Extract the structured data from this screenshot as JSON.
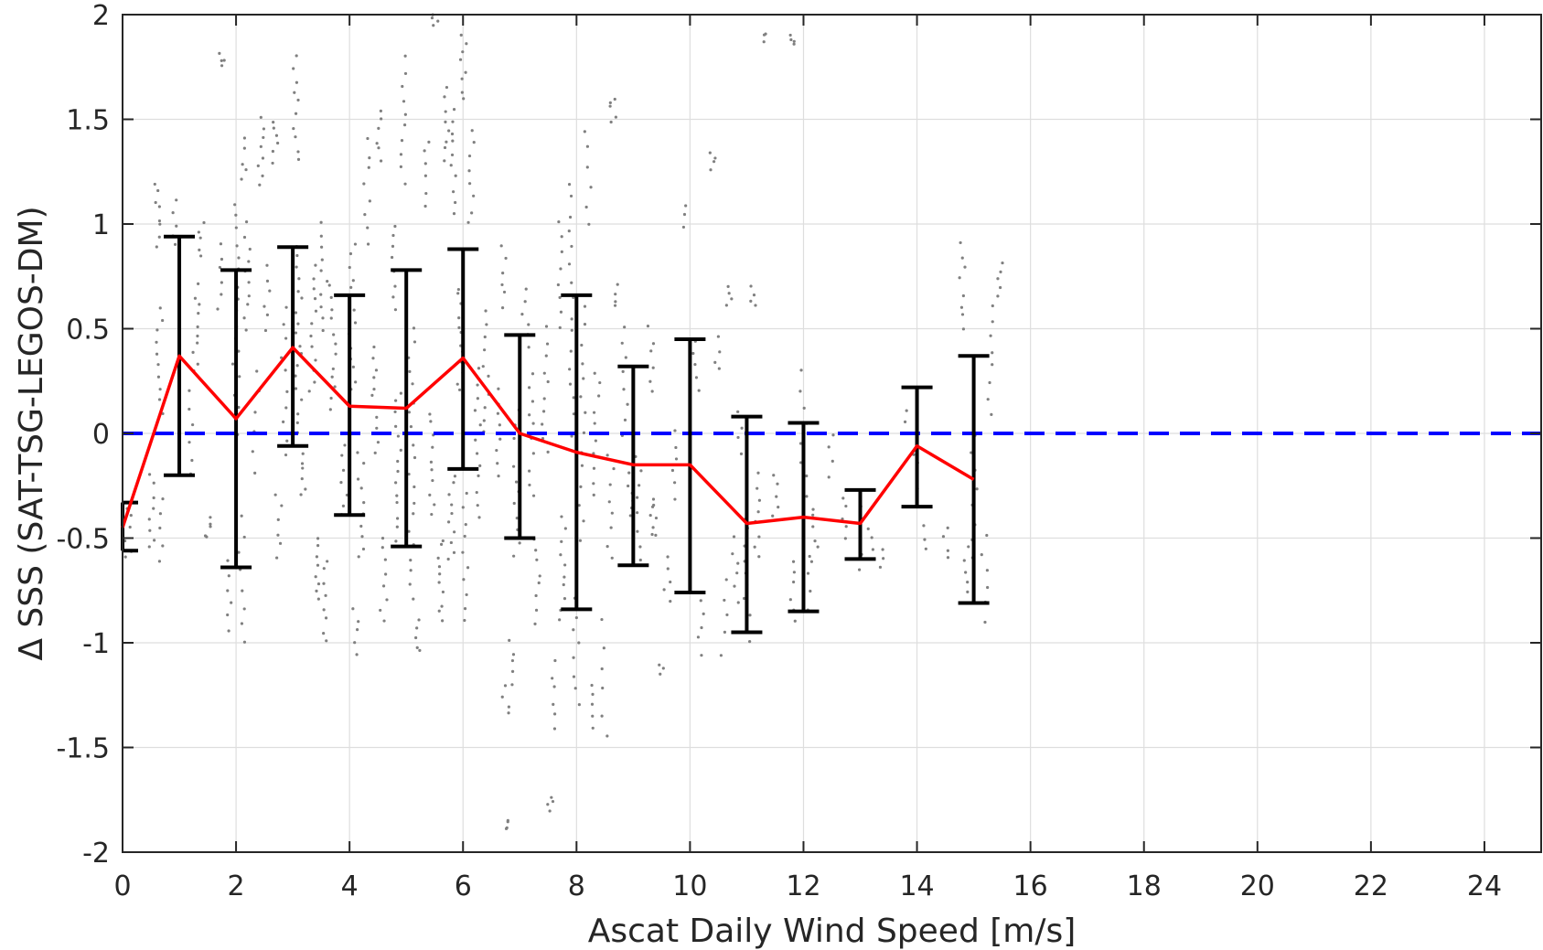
{
  "chart_data": {
    "type": "scatter",
    "xlabel": "Ascat Daily Wind Speed [m/s]",
    "ylabel": "Δ SSS (SAT-TSG-LEGOS-DM)",
    "xlim": [
      0,
      25
    ],
    "ylim": [
      -2,
      2
    ],
    "x_ticks": [
      0,
      2,
      4,
      6,
      8,
      10,
      12,
      14,
      16,
      18,
      20,
      22,
      24
    ],
    "x_tick_labels": [
      "0",
      "2",
      "4",
      "6",
      "8",
      "10",
      "12",
      "14",
      "16",
      "18",
      "20",
      "22",
      "24"
    ],
    "y_ticks": [
      2,
      1.5,
      1,
      0.5,
      0,
      -0.5,
      -1,
      -1.5,
      -2
    ],
    "y_tick_labels": [
      "2",
      "1.5",
      "1",
      "0.5",
      "0",
      "-0.5",
      "-1",
      "-1.5",
      "-2"
    ],
    "grid": true,
    "reference_line": {
      "y": 0,
      "style": "dashed",
      "color": "#0000ff"
    },
    "mean_line": {
      "color": "#ff0000",
      "x": [
        0,
        1,
        2,
        3,
        4,
        5,
        6,
        7,
        8,
        9,
        10,
        11,
        12,
        13,
        14,
        15
      ],
      "y": [
        -0.45,
        0.37,
        0.07,
        0.41,
        0.13,
        0.12,
        0.36,
        0.0,
        -0.09,
        -0.15,
        -0.15,
        -0.43,
        -0.4,
        -0.43,
        -0.06,
        -0.22
      ]
    },
    "error_bars": {
      "color": "#000000",
      "x": [
        0,
        1,
        2,
        3,
        4,
        5,
        6,
        7,
        8,
        9,
        10,
        11,
        12,
        13,
        14,
        15
      ],
      "lower": [
        -0.56,
        -0.2,
        -0.64,
        -0.06,
        -0.39,
        -0.54,
        -0.17,
        -0.5,
        -0.84,
        -0.63,
        -0.76,
        -0.95,
        -0.85,
        -0.6,
        -0.35,
        -0.81
      ],
      "upper": [
        -0.33,
        0.94,
        0.78,
        0.89,
        0.66,
        0.78,
        0.88,
        0.47,
        0.66,
        0.32,
        0.45,
        0.08,
        0.05,
        -0.27,
        0.22,
        0.37
      ]
    },
    "scatter_color": "#808080",
    "scatter_clusters": [
      {
        "x": 0.1,
        "y0": -0.6,
        "y1": -0.35,
        "n": 6
      },
      {
        "x": 0.5,
        "y0": -0.55,
        "y1": -0.2,
        "n": 8
      },
      {
        "x": 0.6,
        "y0": 0.9,
        "y1": 1.2,
        "n": 8
      },
      {
        "x": 0.65,
        "y0": 0.1,
        "y1": 0.6,
        "n": 10
      },
      {
        "x": 0.7,
        "y0": -0.6,
        "y1": -0.3,
        "n": 5
      },
      {
        "x": 0.9,
        "y0": 0.9,
        "y1": 1.1,
        "n": 5
      },
      {
        "x": 1.2,
        "y0": -0.2,
        "y1": 0.2,
        "n": 6
      },
      {
        "x": 1.3,
        "y0": 0.3,
        "y1": 0.7,
        "n": 10
      },
      {
        "x": 1.4,
        "y0": 0.85,
        "y1": 1.0,
        "n": 5
      },
      {
        "x": 1.5,
        "y0": -0.5,
        "y1": -0.4,
        "n": 5
      },
      {
        "x": 1.7,
        "y0": 0.6,
        "y1": 0.9,
        "n": 6
      },
      {
        "x": 1.75,
        "y0": 1.75,
        "y1": 1.82,
        "n": 4
      },
      {
        "x": 1.9,
        "y0": -0.95,
        "y1": -0.6,
        "n": 6
      },
      {
        "x": 2.0,
        "y0": 0.0,
        "y1": 1.1,
        "n": 18
      },
      {
        "x": 2.1,
        "y0": -1.0,
        "y1": -0.4,
        "n": 8
      },
      {
        "x": 2.15,
        "y0": 1.2,
        "y1": 1.4,
        "n": 5
      },
      {
        "x": 2.2,
        "y0": 0.5,
        "y1": 1.0,
        "n": 10
      },
      {
        "x": 2.35,
        "y0": -0.2,
        "y1": 0.3,
        "n": 6
      },
      {
        "x": 2.45,
        "y0": 1.2,
        "y1": 1.5,
        "n": 8
      },
      {
        "x": 2.55,
        "y0": 0.5,
        "y1": 0.8,
        "n": 6
      },
      {
        "x": 2.7,
        "y0": 1.3,
        "y1": 1.5,
        "n": 6
      },
      {
        "x": 2.75,
        "y0": -0.6,
        "y1": -0.3,
        "n": 6
      },
      {
        "x": 2.85,
        "y0": -0.1,
        "y1": 0.6,
        "n": 10
      },
      {
        "x": 3.05,
        "y0": 1.3,
        "y1": 1.8,
        "n": 10
      },
      {
        "x": 3.1,
        "y0": 0.0,
        "y1": 0.9,
        "n": 18
      },
      {
        "x": 3.2,
        "y0": -0.3,
        "y1": -0.1,
        "n": 6
      },
      {
        "x": 3.35,
        "y0": 0.2,
        "y1": 0.8,
        "n": 12
      },
      {
        "x": 3.4,
        "y0": -0.8,
        "y1": -0.5,
        "n": 8
      },
      {
        "x": 3.55,
        "y0": 0.5,
        "y1": 1.0,
        "n": 10
      },
      {
        "x": 3.6,
        "y0": -1.0,
        "y1": -0.6,
        "n": 8
      },
      {
        "x": 3.7,
        "y0": 0.1,
        "y1": 0.7,
        "n": 12
      },
      {
        "x": 3.9,
        "y0": -0.4,
        "y1": 0.0,
        "n": 8
      },
      {
        "x": 4.05,
        "y0": 0.2,
        "y1": 0.9,
        "n": 14
      },
      {
        "x": 4.1,
        "y0": -1.05,
        "y1": -0.85,
        "n": 5
      },
      {
        "x": 4.2,
        "y0": -0.6,
        "y1": -0.1,
        "n": 10
      },
      {
        "x": 4.3,
        "y0": 0.9,
        "y1": 1.4,
        "n": 8
      },
      {
        "x": 4.45,
        "y0": -0.1,
        "y1": 0.4,
        "n": 12
      },
      {
        "x": 4.5,
        "y0": 1.3,
        "y1": 1.55,
        "n": 6
      },
      {
        "x": 4.6,
        "y0": -0.9,
        "y1": -0.5,
        "n": 8
      },
      {
        "x": 4.8,
        "y0": 0.6,
        "y1": 1.0,
        "n": 8
      },
      {
        "x": 4.85,
        "y0": -0.5,
        "y1": 0.2,
        "n": 14
      },
      {
        "x": 4.95,
        "y0": 1.2,
        "y1": 1.8,
        "n": 10
      },
      {
        "x": 5.1,
        "y0": -0.8,
        "y1": 0.5,
        "n": 20
      },
      {
        "x": 5.2,
        "y0": -1.05,
        "y1": -0.9,
        "n": 5
      },
      {
        "x": 5.35,
        "y0": 1.1,
        "y1": 1.4,
        "n": 6
      },
      {
        "x": 5.45,
        "y0": -0.4,
        "y1": 0.1,
        "n": 10
      },
      {
        "x": 5.5,
        "y0": 1.95,
        "y1": 2.0,
        "n": 4
      },
      {
        "x": 5.6,
        "y0": -0.9,
        "y1": -0.5,
        "n": 10
      },
      {
        "x": 5.7,
        "y0": 1.3,
        "y1": 1.65,
        "n": 8
      },
      {
        "x": 5.8,
        "y0": -0.6,
        "y1": -0.2,
        "n": 10
      },
      {
        "x": 5.85,
        "y0": 1.05,
        "y1": 1.55,
        "n": 10
      },
      {
        "x": 5.95,
        "y0": 0.2,
        "y1": 0.7,
        "n": 12
      },
      {
        "x": 6.0,
        "y0": 1.6,
        "y1": 1.9,
        "n": 8
      },
      {
        "x": 6.05,
        "y0": -0.9,
        "y1": -0.3,
        "n": 10
      },
      {
        "x": 6.15,
        "y0": 1.0,
        "y1": 1.45,
        "n": 8
      },
      {
        "x": 6.25,
        "y0": -0.4,
        "y1": 0.3,
        "n": 12
      },
      {
        "x": 6.4,
        "y0": 0.0,
        "y1": 0.6,
        "n": 10
      },
      {
        "x": 6.6,
        "y0": -0.2,
        "y1": 0.2,
        "n": 8
      },
      {
        "x": 6.7,
        "y0": 0.6,
        "y1": 0.9,
        "n": 6
      },
      {
        "x": 6.75,
        "y0": -1.35,
        "y1": -1.2,
        "n": 4
      },
      {
        "x": 6.8,
        "y0": -1.9,
        "y1": -1.85,
        "n": 4
      },
      {
        "x": 6.85,
        "y0": -1.2,
        "y1": -1.0,
        "n": 5
      },
      {
        "x": 6.95,
        "y0": -0.6,
        "y1": 0.1,
        "n": 12
      },
      {
        "x": 7.1,
        "y0": 0.4,
        "y1": 0.7,
        "n": 6
      },
      {
        "x": 7.2,
        "y0": -0.3,
        "y1": 0.3,
        "n": 10
      },
      {
        "x": 7.3,
        "y0": -0.9,
        "y1": -0.5,
        "n": 8
      },
      {
        "x": 7.45,
        "y0": -0.1,
        "y1": 0.5,
        "n": 10
      },
      {
        "x": 7.55,
        "y0": -1.8,
        "y1": -1.75,
        "n": 4
      },
      {
        "x": 7.6,
        "y0": -1.4,
        "y1": -1.1,
        "n": 6
      },
      {
        "x": 7.7,
        "y0": 0.5,
        "y1": 1.0,
        "n": 8
      },
      {
        "x": 7.75,
        "y0": -0.9,
        "y1": -0.4,
        "n": 10
      },
      {
        "x": 7.9,
        "y0": 0.0,
        "y1": 1.2,
        "n": 16
      },
      {
        "x": 8.0,
        "y0": -1.3,
        "y1": -0.8,
        "n": 8
      },
      {
        "x": 8.1,
        "y0": -0.5,
        "y1": 0.6,
        "n": 14
      },
      {
        "x": 8.2,
        "y0": 1.0,
        "y1": 1.45,
        "n": 6
      },
      {
        "x": 8.25,
        "y0": -1.4,
        "y1": -1.2,
        "n": 5
      },
      {
        "x": 8.35,
        "y0": -0.3,
        "y1": 0.3,
        "n": 10
      },
      {
        "x": 8.5,
        "y0": -1.45,
        "y1": -0.9,
        "n": 6
      },
      {
        "x": 8.6,
        "y0": -0.6,
        "y1": -0.1,
        "n": 8
      },
      {
        "x": 8.65,
        "y0": 1.5,
        "y1": 1.6,
        "n": 5
      },
      {
        "x": 8.7,
        "y0": 0.6,
        "y1": 0.7,
        "n": 4
      },
      {
        "x": 8.85,
        "y0": 0.0,
        "y1": 0.5,
        "n": 8
      },
      {
        "x": 8.95,
        "y0": -0.4,
        "y1": -0.2,
        "n": 6
      },
      {
        "x": 9.1,
        "y0": -0.6,
        "y1": -0.1,
        "n": 8
      },
      {
        "x": 9.3,
        "y0": 0.2,
        "y1": 0.5,
        "n": 6
      },
      {
        "x": 9.35,
        "y0": -0.5,
        "y1": -0.3,
        "n": 8
      },
      {
        "x": 9.5,
        "y0": -1.15,
        "y1": -1.1,
        "n": 3
      },
      {
        "x": 9.6,
        "y0": -0.8,
        "y1": -0.6,
        "n": 5
      },
      {
        "x": 9.7,
        "y0": -0.3,
        "y1": 0.0,
        "n": 6
      },
      {
        "x": 9.9,
        "y0": 1.0,
        "y1": 1.1,
        "n": 3
      },
      {
        "x": 10.1,
        "y0": 0.2,
        "y1": 0.45,
        "n": 5
      },
      {
        "x": 10.2,
        "y0": -1.05,
        "y1": -0.8,
        "n": 5
      },
      {
        "x": 10.4,
        "y0": 1.25,
        "y1": 1.35,
        "n": 4
      },
      {
        "x": 10.5,
        "y0": 0.3,
        "y1": 0.45,
        "n": 4
      },
      {
        "x": 10.6,
        "y0": -1.05,
        "y1": -0.7,
        "n": 5
      },
      {
        "x": 10.7,
        "y0": 0.6,
        "y1": 0.7,
        "n": 4
      },
      {
        "x": 10.8,
        "y0": -0.8,
        "y1": -0.5,
        "n": 6
      },
      {
        "x": 10.9,
        "y0": -0.1,
        "y1": 0.1,
        "n": 4
      },
      {
        "x": 11.0,
        "y0": -1.0,
        "y1": -0.4,
        "n": 10
      },
      {
        "x": 11.1,
        "y0": 0.6,
        "y1": 0.7,
        "n": 4
      },
      {
        "x": 11.2,
        "y0": -0.6,
        "y1": -0.2,
        "n": 8
      },
      {
        "x": 11.35,
        "y0": 1.88,
        "y1": 1.92,
        "n": 3
      },
      {
        "x": 11.5,
        "y0": -0.4,
        "y1": -0.2,
        "n": 5
      },
      {
        "x": 11.8,
        "y0": 1.86,
        "y1": 1.9,
        "n": 4
      },
      {
        "x": 11.8,
        "y0": -0.9,
        "y1": -0.6,
        "n": 6
      },
      {
        "x": 12.0,
        "y0": -0.3,
        "y1": 0.3,
        "n": 8
      },
      {
        "x": 12.1,
        "y0": -0.85,
        "y1": -0.6,
        "n": 4
      },
      {
        "x": 12.2,
        "y0": -0.6,
        "y1": -0.35,
        "n": 6
      },
      {
        "x": 12.5,
        "y0": -0.2,
        "y1": 0.0,
        "n": 4
      },
      {
        "x": 12.7,
        "y0": -0.5,
        "y1": -0.3,
        "n": 5
      },
      {
        "x": 13.0,
        "y0": -0.65,
        "y1": -0.35,
        "n": 5
      },
      {
        "x": 13.2,
        "y0": -0.55,
        "y1": -0.45,
        "n": 3
      },
      {
        "x": 13.4,
        "y0": -0.65,
        "y1": -0.55,
        "n": 3
      },
      {
        "x": 13.8,
        "y0": 0.0,
        "y1": 0.1,
        "n": 3
      },
      {
        "x": 14.0,
        "y0": -0.3,
        "y1": -0.1,
        "n": 5
      },
      {
        "x": 14.1,
        "y0": -0.55,
        "y1": -0.45,
        "n": 3
      },
      {
        "x": 14.5,
        "y0": -0.6,
        "y1": -0.45,
        "n": 4
      },
      {
        "x": 14.8,
        "y0": 0.5,
        "y1": 0.9,
        "n": 8
      },
      {
        "x": 14.85,
        "y0": -0.75,
        "y1": -0.55,
        "n": 5
      },
      {
        "x": 15.0,
        "y0": -0.6,
        "y1": 0.0,
        "n": 8
      },
      {
        "x": 15.2,
        "y0": -0.9,
        "y1": -0.5,
        "n": 6
      },
      {
        "x": 15.3,
        "y0": 0.1,
        "y1": 0.6,
        "n": 8
      },
      {
        "x": 15.45,
        "y0": 0.65,
        "y1": 0.8,
        "n": 5
      }
    ]
  }
}
